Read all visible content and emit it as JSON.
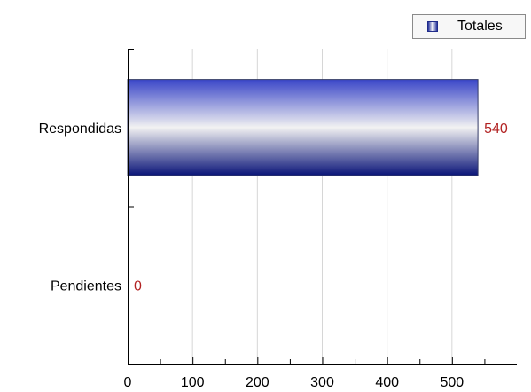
{
  "chart_data": {
    "type": "bar",
    "orientation": "horizontal",
    "categories": [
      "Respondidas",
      "Pendientes"
    ],
    "series": [
      {
        "name": "Totales",
        "values": [
          540,
          0
        ]
      }
    ],
    "data_labels": [
      "540",
      "0"
    ],
    "xlim": [
      0,
      600
    ],
    "x_ticks": [
      0,
      100,
      200,
      300,
      400,
      500
    ],
    "title": "",
    "xlabel": "",
    "ylabel": "",
    "grid": "vertical",
    "legend_position": "top-right",
    "colors": {
      "bar_edge": "#0a1478",
      "bar_light": "#f2f2f2",
      "bar_mid": "#5c66c8",
      "value_label": "#b22222",
      "grid": "#d6d6d6",
      "axis": "#000000"
    }
  }
}
